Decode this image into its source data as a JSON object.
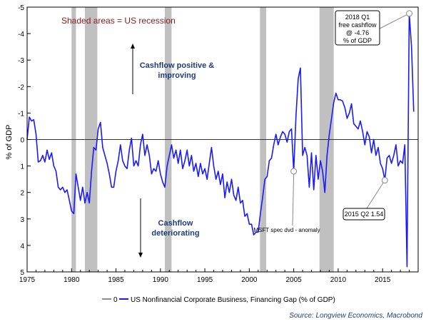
{
  "chart_data": {
    "type": "line",
    "ylabel": "% of GDP",
    "y_inverted": true,
    "ylim": [
      -5,
      5
    ],
    "yticks": [
      "-5",
      "-4",
      "-3",
      "-2",
      "-1",
      "0",
      "1",
      "2",
      "3",
      "4",
      "5"
    ],
    "xlim": [
      1975,
      2019
    ],
    "xticks": [
      "1975",
      "1980",
      "1985",
      "1990",
      "1995",
      "2000",
      "2005",
      "2010",
      "2015"
    ],
    "grid": false,
    "legend_position": "bottom",
    "legend": {
      "zero_label": "0",
      "series_label": "US Nonfinancial Corporate Business, Financing Gap (% of GDP)"
    },
    "colors": {
      "series": "#1a1aff",
      "zero_line": "#666666",
      "recession": "#c0c0c0",
      "annotation_red": "#8b1a1a",
      "annotation_blue": "#1f3d7a"
    },
    "recessions": [
      [
        1980.0,
        1980.5
      ],
      [
        1981.5,
        1982.9
      ],
      [
        1990.5,
        1991.25
      ],
      [
        2001.2,
        2001.9
      ],
      [
        2007.9,
        2009.5
      ]
    ],
    "annotations": {
      "recession_note": "Shaded areas = US recession",
      "positive_line1": "Cashflow positive &",
      "positive_line2": "improving",
      "negative_line1": "Cashflow",
      "negative_line2": "deteriorating",
      "msft_note": "MSFT spec dvd - anomaly",
      "box_2018_line1": "2018 Q1",
      "box_2018_line2": "free cashflow",
      "box_2018_line3": "@ -4.76",
      "box_2018_line4": "% of GDP",
      "box_2015": "2015 Q2 1.54"
    },
    "series": [
      {
        "name": "US Nonfinancial Corporate Business, Financing Gap (% of GDP)",
        "points": [
          [
            1975.0,
            0.0
          ],
          [
            1975.25,
            -0.85
          ],
          [
            1975.5,
            -0.7
          ],
          [
            1975.75,
            -0.75
          ],
          [
            1976.0,
            -0.2
          ],
          [
            1976.25,
            0.85
          ],
          [
            1976.5,
            0.8
          ],
          [
            1976.75,
            0.6
          ],
          [
            1977.0,
            0.85
          ],
          [
            1977.25,
            0.4
          ],
          [
            1977.5,
            0.75
          ],
          [
            1977.75,
            0.5
          ],
          [
            1978.0,
            1.0
          ],
          [
            1978.25,
            1.2
          ],
          [
            1978.5,
            1.8
          ],
          [
            1978.75,
            1.9
          ],
          [
            1979.0,
            1.8
          ],
          [
            1979.25,
            2.0
          ],
          [
            1979.5,
            1.9
          ],
          [
            1979.75,
            2.3
          ],
          [
            1980.0,
            2.7
          ],
          [
            1980.25,
            2.8
          ],
          [
            1980.5,
            1.3
          ],
          [
            1980.75,
            1.8
          ],
          [
            1981.0,
            2.3
          ],
          [
            1981.25,
            1.8
          ],
          [
            1981.5,
            2.4
          ],
          [
            1981.75,
            2.0
          ],
          [
            1982.0,
            2.4
          ],
          [
            1982.25,
            1.2
          ],
          [
            1982.5,
            0.3
          ],
          [
            1982.75,
            0.4
          ],
          [
            1983.0,
            -0.4
          ],
          [
            1983.25,
            -0.65
          ],
          [
            1983.5,
            0.3
          ],
          [
            1983.75,
            0.6
          ],
          [
            1984.0,
            0.9
          ],
          [
            1984.25,
            1.3
          ],
          [
            1984.5,
            1.8
          ],
          [
            1984.75,
            1.8
          ],
          [
            1985.0,
            1.2
          ],
          [
            1985.25,
            0.8
          ],
          [
            1985.5,
            0.2
          ],
          [
            1985.75,
            0.8
          ],
          [
            1986.0,
            1.0
          ],
          [
            1986.25,
            1.1
          ],
          [
            1986.5,
            0.4
          ],
          [
            1986.75,
            -0.05
          ],
          [
            1987.0,
            1.0
          ],
          [
            1987.25,
            0.8
          ],
          [
            1987.5,
            1.0
          ],
          [
            1987.75,
            0.2
          ],
          [
            1988.0,
            -0.2
          ],
          [
            1988.25,
            0.6
          ],
          [
            1988.5,
            0.2
          ],
          [
            1988.75,
            0.6
          ],
          [
            1989.0,
            1.3
          ],
          [
            1989.25,
            1.1
          ],
          [
            1989.5,
            1.2
          ],
          [
            1989.75,
            0.8
          ],
          [
            1990.0,
            1.3
          ],
          [
            1990.25,
            1.6
          ],
          [
            1990.5,
            1.8
          ],
          [
            1990.75,
            1.0
          ],
          [
            1991.0,
            0.6
          ],
          [
            1991.25,
            0.2
          ],
          [
            1991.5,
            0.7
          ],
          [
            1991.75,
            0.4
          ],
          [
            1992.0,
            0.9
          ],
          [
            1992.25,
            0.4
          ],
          [
            1992.5,
            1.1
          ],
          [
            1992.75,
            0.8
          ],
          [
            1993.0,
            0.4
          ],
          [
            1993.25,
            1.0
          ],
          [
            1993.5,
            0.6
          ],
          [
            1993.75,
            1.2
          ],
          [
            1994.0,
            0.9
          ],
          [
            1994.25,
            1.4
          ],
          [
            1994.5,
            0.9
          ],
          [
            1994.75,
            1.3
          ],
          [
            1995.0,
            1.1
          ],
          [
            1995.25,
            1.5
          ],
          [
            1995.5,
            0.9
          ],
          [
            1995.75,
            0.3
          ],
          [
            1996.0,
            1.0
          ],
          [
            1996.25,
            1.5
          ],
          [
            1996.5,
            1.2
          ],
          [
            1996.75,
            1.7
          ],
          [
            1997.0,
            1.3
          ],
          [
            1997.25,
            2.2
          ],
          [
            1997.5,
            1.6
          ],
          [
            1997.75,
            2.0
          ],
          [
            1998.0,
            1.5
          ],
          [
            1998.25,
            2.1
          ],
          [
            1998.5,
            2.3
          ],
          [
            1998.75,
            1.8
          ],
          [
            1999.0,
            2.4
          ],
          [
            1999.25,
            2.3
          ],
          [
            1999.5,
            2.9
          ],
          [
            1999.75,
            2.8
          ],
          [
            2000.0,
            3.2
          ],
          [
            2000.25,
            3.2
          ],
          [
            2000.5,
            3.6
          ],
          [
            2000.75,
            3.5
          ],
          [
            2001.0,
            3.5
          ],
          [
            2001.25,
            2.8
          ],
          [
            2001.5,
            2.2
          ],
          [
            2001.75,
            1.5
          ],
          [
            2002.0,
            1.4
          ],
          [
            2002.25,
            0.8
          ],
          [
            2002.5,
            0.7
          ],
          [
            2002.75,
            0.2
          ],
          [
            2003.0,
            -0.2
          ],
          [
            2003.25,
            0.2
          ],
          [
            2003.5,
            -0.1
          ],
          [
            2003.75,
            -0.3
          ],
          [
            2004.0,
            -0.2
          ],
          [
            2004.25,
            0.1
          ],
          [
            2004.5,
            -0.3
          ],
          [
            2004.75,
            -0.4
          ],
          [
            2005.0,
            1.2
          ],
          [
            2005.25,
            -0.9
          ],
          [
            2005.5,
            -2.3
          ],
          [
            2005.75,
            -2.7
          ],
          [
            2006.0,
            0.6
          ],
          [
            2006.25,
            0.3
          ],
          [
            2006.5,
            0.6
          ],
          [
            2006.75,
            1.8
          ],
          [
            2007.0,
            0.5
          ],
          [
            2007.25,
            1.9
          ],
          [
            2007.5,
            0.6
          ],
          [
            2007.75,
            1.5
          ],
          [
            2008.0,
            0.8
          ],
          [
            2008.25,
            1.2
          ],
          [
            2008.5,
            2.0
          ],
          [
            2008.75,
            0.6
          ],
          [
            2009.0,
            -0.2
          ],
          [
            2009.25,
            -0.8
          ],
          [
            2009.5,
            -1.4
          ],
          [
            2009.75,
            -1.75
          ],
          [
            2010.0,
            -1.5
          ],
          [
            2010.25,
            -1.5
          ],
          [
            2010.5,
            -1.45
          ],
          [
            2010.75,
            -1.2
          ],
          [
            2011.0,
            -0.8
          ],
          [
            2011.25,
            -1.0
          ],
          [
            2011.5,
            -1.35
          ],
          [
            2011.75,
            -0.6
          ],
          [
            2012.0,
            -0.5
          ],
          [
            2012.25,
            -0.4
          ],
          [
            2012.5,
            -0.7
          ],
          [
            2012.75,
            -0.3
          ],
          [
            2013.0,
            0.2
          ],
          [
            2013.25,
            -0.3
          ],
          [
            2013.5,
            -0.1
          ],
          [
            2013.75,
            0.5
          ],
          [
            2014.0,
            0.0
          ],
          [
            2014.25,
            0.6
          ],
          [
            2014.5,
            0.3
          ],
          [
            2014.75,
            0.9
          ],
          [
            2015.0,
            1.1
          ],
          [
            2015.25,
            1.54
          ],
          [
            2015.5,
            0.7
          ],
          [
            2015.75,
            0.6
          ],
          [
            2016.0,
            0.9
          ],
          [
            2016.25,
            0.6
          ],
          [
            2016.5,
            0.2
          ],
          [
            2016.75,
            1.0
          ],
          [
            2017.0,
            0.8
          ],
          [
            2017.25,
            0.9
          ],
          [
            2017.5,
            0.2
          ],
          [
            2017.75,
            4.8
          ],
          [
            2018.0,
            -4.76
          ],
          [
            2018.25,
            -3.5
          ],
          [
            2018.5,
            -1.05
          ]
        ]
      }
    ]
  }
}
